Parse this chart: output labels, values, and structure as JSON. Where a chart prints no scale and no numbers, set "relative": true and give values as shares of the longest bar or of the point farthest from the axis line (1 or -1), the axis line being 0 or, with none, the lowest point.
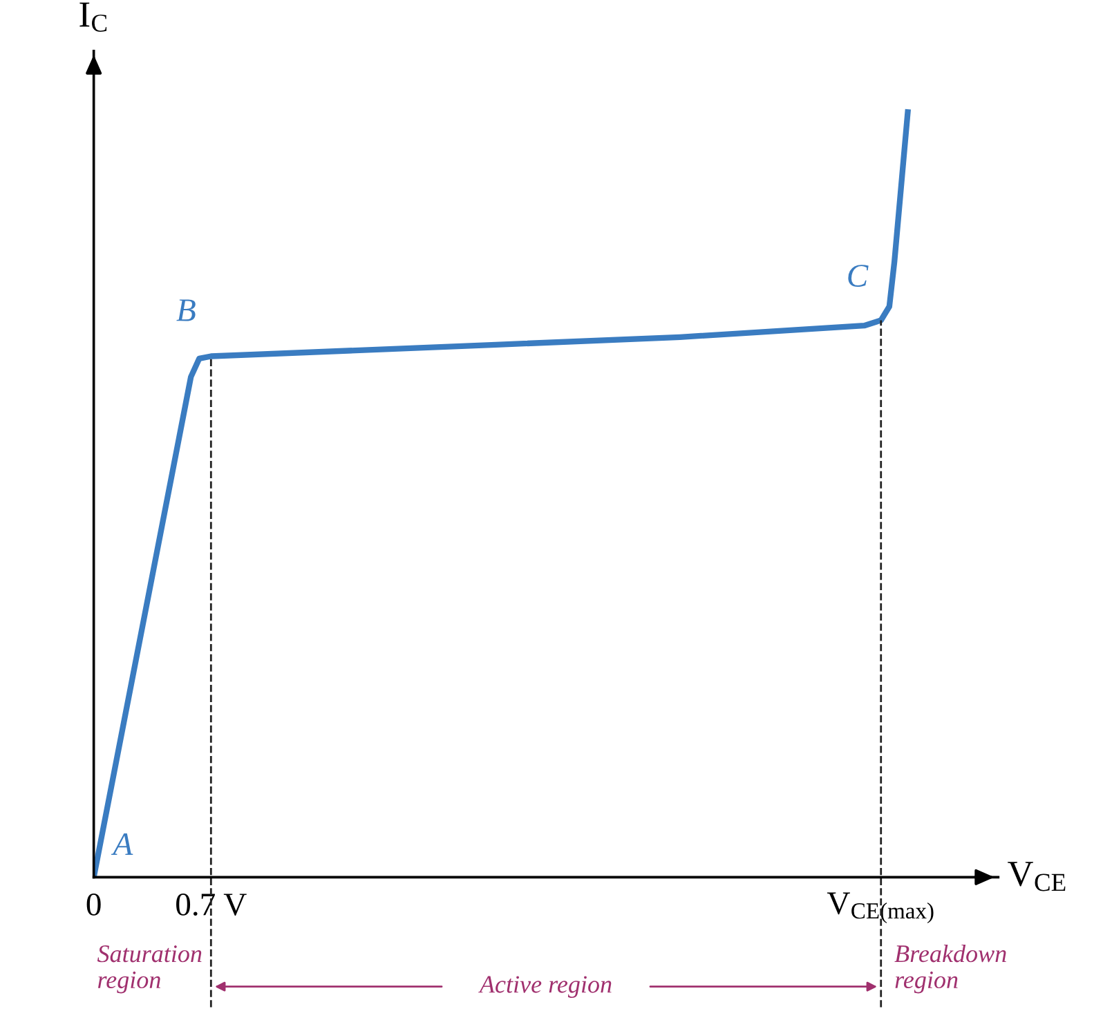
{
  "chart_data": {
    "type": "line",
    "relative": true,
    "xlabel": "V$_{CE}$",
    "ylabel": "I$_{C}$",
    "x": [
      0,
      0.58,
      0.63,
      0.7,
      2.4,
      3.5,
      4.6,
      4.7,
      4.75,
      4.78,
      4.86
    ],
    "series": [
      {
        "color": "#3a7cc1",
        "values": [
          0,
          0.654,
          0.678,
          0.681,
          0.696,
          0.706,
          0.721,
          0.728,
          0.746,
          0.804,
          1.0
        ]
      }
    ],
    "xlim": [
      0,
      5.4
    ],
    "xticks": [
      0,
      {
        "value": 0.7,
        "label": "0.7 V"
      },
      {
        "value": 4.7,
        "label": "V$_{CE(max)}$"
      }
    ],
    "ref_lines": [
      {
        "axis": "x",
        "value": 0.7,
        "line_style": "dashed",
        "color": "#222222"
      },
      {
        "axis": "x",
        "value": 4.7,
        "line_style": "dashed",
        "color": "#222222"
      }
    ],
    "annotations": [
      {
        "text": "A",
        "x": 0,
        "y": 0
      },
      {
        "text": "B",
        "x": 0.63,
        "y": 0.678
      },
      {
        "text": "C",
        "x": 4.7,
        "y": 0.728
      },
      "Saturation\nregion",
      "Active region",
      "Breakdown\nregion"
    ],
    "grid": false,
    "legend": false,
    "marker": "none",
    "line_style": "solid"
  }
}
